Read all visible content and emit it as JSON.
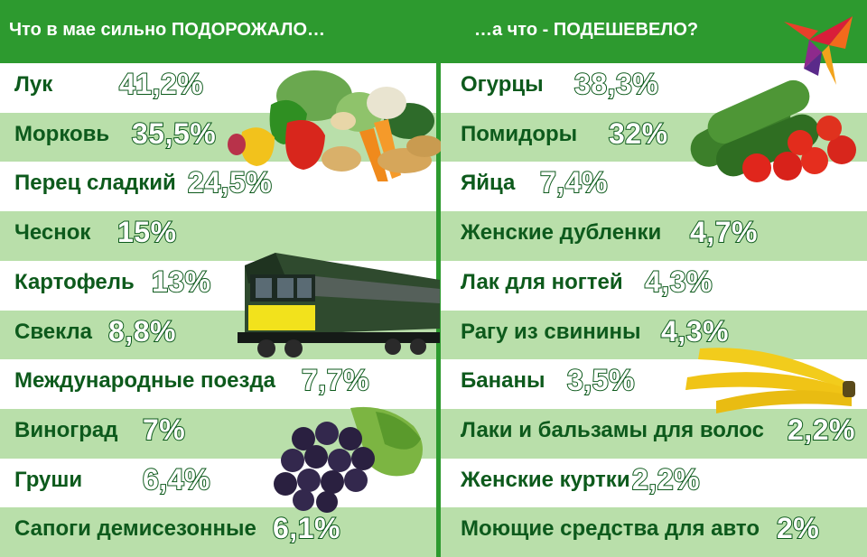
{
  "header": {
    "left_title": "Что в мае сильно ПОДОРОЖАЛО…",
    "right_title": "…а что - ПОДЕШЕВЕЛО?"
  },
  "colors": {
    "header_green": "#2d9a2f",
    "row_shade": "#b9dfaa",
    "text_dark_green": "#0d5a1c"
  },
  "icons": {
    "logo": "kp-bird-logo-icon",
    "vegetables": "vegetables-icon",
    "train": "train-icon",
    "grapes": "grapes-icon",
    "cucumbers_tomatoes": "cucumbers-tomatoes-icon",
    "bananas": "bananas-icon"
  },
  "price_up": [
    {
      "label": "Лук",
      "value": "41,2%"
    },
    {
      "label": "Морковь",
      "value": "35,5%"
    },
    {
      "label": "Перец сладкий",
      "value": "24,5%"
    },
    {
      "label": "Чеснок",
      "value": "15%"
    },
    {
      "label": "Картофель",
      "value": "13%"
    },
    {
      "label": "Свекла",
      "value": "8,8%"
    },
    {
      "label": "Международные поезда",
      "value": "7,7%"
    },
    {
      "label": "Виноград",
      "value": "7%"
    },
    {
      "label": "Груши",
      "value": "6,4%"
    },
    {
      "label": "Сапоги демисезонные",
      "value": "6,1%"
    }
  ],
  "price_down": [
    {
      "label": "Огурцы",
      "value": "38,3%"
    },
    {
      "label": "Помидоры",
      "value": "32%"
    },
    {
      "label": "Яйца",
      "value": "7,4%"
    },
    {
      "label": "Женские дубленки",
      "value": "4,7%"
    },
    {
      "label": "Лак для ногтей",
      "value": "4,3%"
    },
    {
      "label": "Рагу из свинины",
      "value": "4,3%"
    },
    {
      "label": "Бананы",
      "value": "3,5%"
    },
    {
      "label": "Лаки и бальзамы для волос",
      "value": "2,2%"
    },
    {
      "label": "Женские куртки",
      "value": "2,2%"
    },
    {
      "label": "Моющие средства для авто",
      "value": "2%"
    }
  ]
}
